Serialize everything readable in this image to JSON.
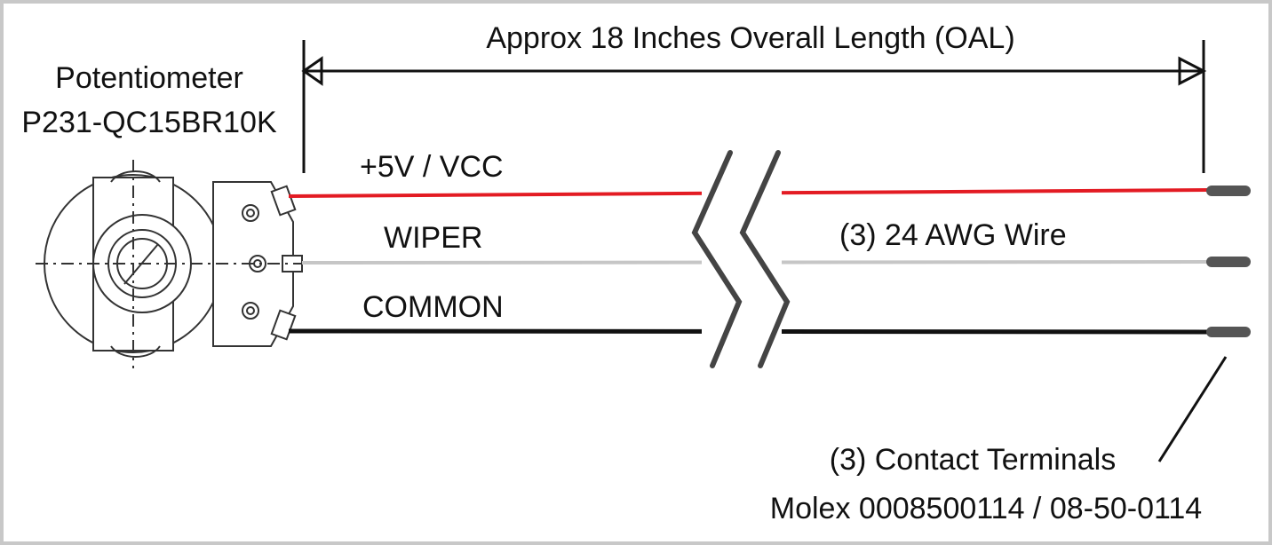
{
  "dimension": {
    "label": "Approx 18 Inches Overall Length (OAL)"
  },
  "component": {
    "name": "Potentiometer",
    "part_number": "P231-QC15BR10K"
  },
  "wires": [
    {
      "label": "+5V / VCC"
    },
    {
      "label": "WIPER"
    },
    {
      "label": "COMMON"
    }
  ],
  "wire_spec": "(3) 24 AWG Wire",
  "terminals": {
    "label": "(3) Contact Terminals",
    "part_number": "Molex 0008500114 / 08-50-0114"
  }
}
